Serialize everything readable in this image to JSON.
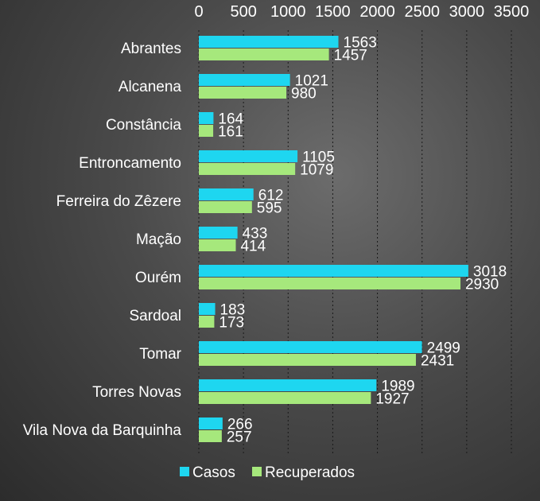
{
  "chart_data": {
    "type": "bar",
    "orientation": "horizontal",
    "categories": [
      "Abrantes",
      "Alcanena",
      "Constância",
      "Entroncamento",
      "Ferreira do Zêzere",
      "Mação",
      "Ourém",
      "Sardoal",
      "Tomar",
      "Torres Novas",
      "Vila Nova da Barquinha"
    ],
    "series": [
      {
        "name": "Casos",
        "color": "#1ed6f0",
        "values": [
          1563,
          1021,
          164,
          1105,
          612,
          433,
          3018,
          183,
          2499,
          1989,
          266
        ]
      },
      {
        "name": "Recuperados",
        "color": "#a6e87c",
        "values": [
          1457,
          980,
          161,
          1079,
          595,
          414,
          2930,
          173,
          2431,
          1927,
          257
        ]
      }
    ],
    "xlim": [
      0,
      3500
    ],
    "x_ticks": [
      0,
      500,
      1000,
      1500,
      2000,
      2500,
      3000,
      3500
    ],
    "x_axis_position": "top",
    "grid": true,
    "legend_position": "bottom"
  }
}
